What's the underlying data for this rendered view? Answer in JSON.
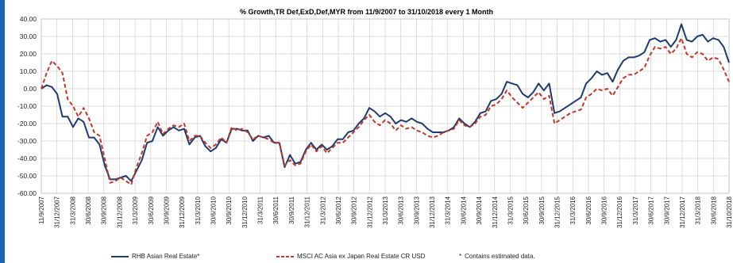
{
  "colors": {
    "series1": "#1f3b6e",
    "series2": "#c0392b",
    "accent_bar": "#1e63b0",
    "grid": "#cfcfcf"
  },
  "chart_data": {
    "type": "line",
    "title": "% Growth,TR Def,ExD,Def,MYR from 11/9/2007 to 31/10/2018 every 1 Month",
    "ylim": [
      -60,
      40
    ],
    "yticks": [
      "40.00",
      "30.00",
      "20.00",
      "10.00",
      "0.00",
      "-10.00",
      "-20.00",
      "-30.00",
      "-40.00",
      "-50.00",
      "-60.00"
    ],
    "yticks_values": [
      40,
      30,
      20,
      10,
      0,
      -10,
      -20,
      -30,
      -40,
      -50,
      -60
    ],
    "xticks": [
      "11/9/2007",
      "31/12/2007",
      "31/3/2008",
      "30/6/2008",
      "30/9/2008",
      "31/12/2008",
      "31/3/2009",
      "30/6/2009",
      "30/9/2009",
      "31/12/2009",
      "31/3/2010",
      "30/6/2010",
      "30/9/2010",
      "31/12/2010",
      "31/3/2011",
      "30/6/2011",
      "30/9/2011",
      "31/12/2011",
      "31/3/2012",
      "30/6/2012",
      "30/9/2012",
      "31/12/2012",
      "31/3/2013",
      "30/6/2013",
      "30/9/2013",
      "31/12/2013",
      "31/3/2014",
      "30/6/2014",
      "30/9/2014",
      "31/12/2014",
      "31/3/2015",
      "30/6/2015",
      "30/9/2015",
      "31/12/2015",
      "31/3/2016",
      "30/6/2016",
      "30/9/2016",
      "31/12/2016",
      "31/3/2017",
      "30/6/2017",
      "30/9/2017",
      "31/12/2017",
      "31/3/2018",
      "30/6/2018",
      "31/10/2018"
    ],
    "grid": true,
    "series": [
      {
        "name": "RHB Asian Real Estate*",
        "style": "solid",
        "values": [
          [
            0,
            0
          ],
          [
            1,
            2
          ],
          [
            2,
            1
          ],
          [
            3,
            -3
          ],
          [
            4,
            -16
          ],
          [
            5,
            -16
          ],
          [
            6,
            -22
          ],
          [
            7,
            -17
          ],
          [
            8,
            -19
          ],
          [
            9,
            -28
          ],
          [
            10,
            -28
          ],
          [
            11,
            -32
          ],
          [
            12,
            -44
          ],
          [
            13,
            -52
          ],
          [
            14,
            -52
          ],
          [
            15,
            -51
          ],
          [
            16,
            -50
          ],
          [
            17,
            -53
          ],
          [
            18,
            -47
          ],
          [
            19,
            -41
          ],
          [
            20,
            -31
          ],
          [
            21,
            -30
          ],
          [
            22,
            -22
          ],
          [
            23,
            -27
          ],
          [
            24,
            -24
          ],
          [
            25,
            -22
          ],
          [
            26,
            -24
          ],
          [
            27,
            -23
          ],
          [
            28,
            -32
          ],
          [
            29,
            -28
          ],
          [
            30,
            -27
          ],
          [
            31,
            -33
          ],
          [
            32,
            -36
          ],
          [
            33,
            -34
          ],
          [
            34,
            -29
          ],
          [
            35,
            -31
          ],
          [
            36,
            -23
          ],
          [
            37,
            -23
          ],
          [
            38,
            -24
          ],
          [
            39,
            -24
          ],
          [
            40,
            -30
          ],
          [
            41,
            -27
          ],
          [
            42,
            -28
          ],
          [
            43,
            -27
          ],
          [
            44,
            -31
          ],
          [
            45,
            -31
          ],
          [
            46,
            -45
          ],
          [
            47,
            -38
          ],
          [
            48,
            -43
          ],
          [
            49,
            -42
          ],
          [
            50,
            -35
          ],
          [
            51,
            -31
          ],
          [
            52,
            -35
          ],
          [
            53,
            -32
          ],
          [
            54,
            -35
          ],
          [
            55,
            -33
          ],
          [
            56,
            -29
          ],
          [
            57,
            -29
          ],
          [
            58,
            -25
          ],
          [
            59,
            -24
          ],
          [
            60,
            -20
          ],
          [
            61,
            -17
          ],
          [
            62,
            -11
          ],
          [
            63,
            -13
          ],
          [
            64,
            -16
          ],
          [
            65,
            -14
          ],
          [
            66,
            -16
          ],
          [
            67,
            -20
          ],
          [
            68,
            -18
          ],
          [
            69,
            -19
          ],
          [
            70,
            -17
          ],
          [
            71,
            -19
          ],
          [
            72,
            -20
          ],
          [
            73,
            -23
          ],
          [
            74,
            -25
          ],
          [
            75,
            -25
          ],
          [
            76,
            -25
          ],
          [
            77,
            -24
          ],
          [
            78,
            -22
          ],
          [
            79,
            -17
          ],
          [
            80,
            -20
          ],
          [
            81,
            -22
          ],
          [
            82,
            -19
          ],
          [
            83,
            -14
          ],
          [
            84,
            -13
          ],
          [
            85,
            -7
          ],
          [
            86,
            -6
          ],
          [
            87,
            -3
          ],
          [
            88,
            4
          ],
          [
            89,
            3
          ],
          [
            90,
            2
          ],
          [
            91,
            -3
          ],
          [
            92,
            -5
          ],
          [
            93,
            -2
          ],
          [
            94,
            3
          ],
          [
            95,
            -1
          ],
          [
            96,
            3
          ],
          [
            97,
            -14
          ],
          [
            98,
            -13
          ],
          [
            99,
            -11
          ],
          [
            100,
            -9
          ],
          [
            101,
            -7
          ],
          [
            102,
            -5
          ],
          [
            103,
            3
          ],
          [
            104,
            6
          ],
          [
            105,
            10
          ],
          [
            106,
            8
          ],
          [
            107,
            9
          ],
          [
            108,
            4
          ],
          [
            109,
            11
          ],
          [
            110,
            16
          ],
          [
            111,
            18
          ],
          [
            112,
            18
          ],
          [
            113,
            19
          ],
          [
            114,
            21
          ],
          [
            115,
            28
          ],
          [
            116,
            29
          ],
          [
            117,
            27
          ],
          [
            118,
            28
          ],
          [
            119,
            24
          ],
          [
            120,
            28
          ],
          [
            121,
            37
          ],
          [
            122,
            28
          ],
          [
            123,
            27
          ],
          [
            124,
            30
          ],
          [
            125,
            31
          ],
          [
            126,
            27
          ],
          [
            127,
            29
          ],
          [
            128,
            28
          ],
          [
            129,
            24
          ],
          [
            130,
            15
          ]
        ]
      },
      {
        "name": "MSCI AC Asia ex Japan Real Estate CR USD",
        "style": "dashed",
        "values": [
          [
            0,
            0
          ],
          [
            1,
            9
          ],
          [
            2,
            16
          ],
          [
            3,
            13
          ],
          [
            4,
            9
          ],
          [
            5,
            -6
          ],
          [
            6,
            -10
          ],
          [
            7,
            -16
          ],
          [
            8,
            -11
          ],
          [
            9,
            -17
          ],
          [
            10,
            -25
          ],
          [
            11,
            -27
          ],
          [
            12,
            -40
          ],
          [
            13,
            -54
          ],
          [
            14,
            -53
          ],
          [
            15,
            -51
          ],
          [
            16,
            -53
          ],
          [
            17,
            -55
          ],
          [
            18,
            -45
          ],
          [
            19,
            -37
          ],
          [
            20,
            -27
          ],
          [
            21,
            -25
          ],
          [
            22,
            -19
          ],
          [
            23,
            -26
          ],
          [
            24,
            -23
          ],
          [
            25,
            -21
          ],
          [
            26,
            -22
          ],
          [
            27,
            -20
          ],
          [
            28,
            -30
          ],
          [
            29,
            -27
          ],
          [
            30,
            -27
          ],
          [
            31,
            -31
          ],
          [
            32,
            -34
          ],
          [
            33,
            -32
          ],
          [
            34,
            -28
          ],
          [
            35,
            -31
          ],
          [
            36,
            -22
          ],
          [
            37,
            -24
          ],
          [
            38,
            -23
          ],
          [
            39,
            -25
          ],
          [
            40,
            -29
          ],
          [
            41,
            -27
          ],
          [
            42,
            -28
          ],
          [
            43,
            -29
          ],
          [
            44,
            -31
          ],
          [
            45,
            -31
          ],
          [
            46,
            -44
          ],
          [
            47,
            -41
          ],
          [
            48,
            -44
          ],
          [
            49,
            -43
          ],
          [
            50,
            -36
          ],
          [
            51,
            -32
          ],
          [
            52,
            -36
          ],
          [
            53,
            -33
          ],
          [
            54,
            -37
          ],
          [
            55,
            -34
          ],
          [
            56,
            -31
          ],
          [
            57,
            -31
          ],
          [
            58,
            -28
          ],
          [
            59,
            -25
          ],
          [
            60,
            -22
          ],
          [
            61,
            -18
          ],
          [
            62,
            -15
          ],
          [
            63,
            -19
          ],
          [
            64,
            -21
          ],
          [
            65,
            -18
          ],
          [
            66,
            -20
          ],
          [
            67,
            -24
          ],
          [
            68,
            -21
          ],
          [
            69,
            -23
          ],
          [
            70,
            -22
          ],
          [
            71,
            -24
          ],
          [
            72,
            -25
          ],
          [
            73,
            -27
          ],
          [
            74,
            -28
          ],
          [
            75,
            -27
          ],
          [
            76,
            -25
          ],
          [
            77,
            -24
          ],
          [
            78,
            -23
          ],
          [
            79,
            -18
          ],
          [
            80,
            -21
          ],
          [
            81,
            -22
          ],
          [
            82,
            -20
          ],
          [
            83,
            -16
          ],
          [
            84,
            -15
          ],
          [
            85,
            -10
          ],
          [
            86,
            -9
          ],
          [
            87,
            -6
          ],
          [
            88,
            -1
          ],
          [
            89,
            -5
          ],
          [
            90,
            -8
          ],
          [
            91,
            -11
          ],
          [
            92,
            -8
          ],
          [
            93,
            -5
          ],
          [
            94,
            -2
          ],
          [
            95,
            -6
          ],
          [
            96,
            -4
          ],
          [
            97,
            -20
          ],
          [
            98,
            -18
          ],
          [
            99,
            -16
          ],
          [
            100,
            -14
          ],
          [
            101,
            -13
          ],
          [
            102,
            -12
          ],
          [
            103,
            -5
          ],
          [
            104,
            -3
          ],
          [
            105,
            0
          ],
          [
            106,
            -1
          ],
          [
            107,
            0
          ],
          [
            108,
            -4
          ],
          [
            109,
            1
          ],
          [
            110,
            6
          ],
          [
            111,
            8
          ],
          [
            112,
            8
          ],
          [
            113,
            10
          ],
          [
            114,
            12
          ],
          [
            115,
            19
          ],
          [
            116,
            24
          ],
          [
            117,
            23
          ],
          [
            118,
            24
          ],
          [
            119,
            20
          ],
          [
            120,
            23
          ],
          [
            121,
            29
          ],
          [
            122,
            20
          ],
          [
            123,
            18
          ],
          [
            124,
            21
          ],
          [
            125,
            20
          ],
          [
            126,
            16
          ],
          [
            127,
            18
          ],
          [
            128,
            17
          ],
          [
            129,
            11
          ],
          [
            130,
            4
          ]
        ]
      }
    ],
    "footnote": "Contains estimated data."
  }
}
